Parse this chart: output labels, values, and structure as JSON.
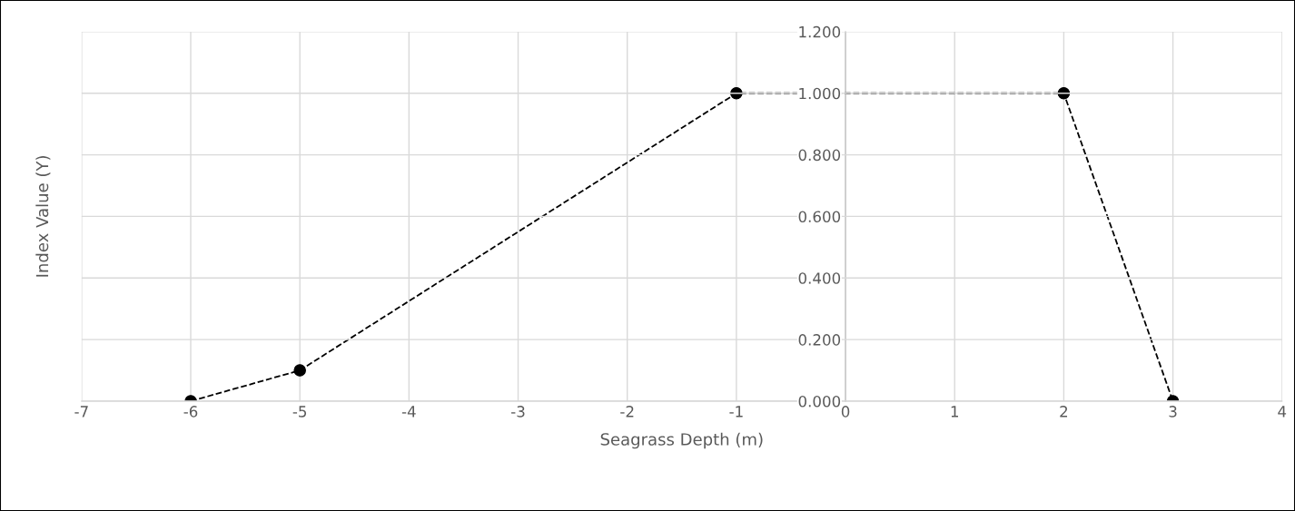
{
  "chart_data": {
    "type": "line",
    "xlabel": "Seagrass Depth (m)",
    "ylabel": "Index Value (Y)",
    "x": [
      -6,
      -5,
      -1,
      2,
      3
    ],
    "series": [
      {
        "color": "#000000",
        "values": [
          0,
          0.1,
          1,
          1,
          0
        ]
      }
    ],
    "xlim": [
      -7,
      4
    ],
    "xticks": [
      -7,
      -6,
      -5,
      -4,
      -3,
      -2,
      -1,
      0,
      1,
      2,
      3,
      4
    ],
    "ylim": [
      0,
      1.2
    ],
    "yticks": [
      {
        "value": 0,
        "label": "0.000"
      },
      {
        "value": 0.2,
        "label": "0.200"
      },
      {
        "value": 0.4,
        "label": "0.400"
      },
      {
        "value": 0.6,
        "label": "0.600"
      },
      {
        "value": 0.8,
        "label": "0.800"
      },
      {
        "value": 1.0,
        "label": "1.000"
      },
      {
        "value": 1.2,
        "label": "1.200"
      }
    ],
    "grid": true,
    "marker": "circle",
    "line_style": "dashed",
    "legend": false
  }
}
